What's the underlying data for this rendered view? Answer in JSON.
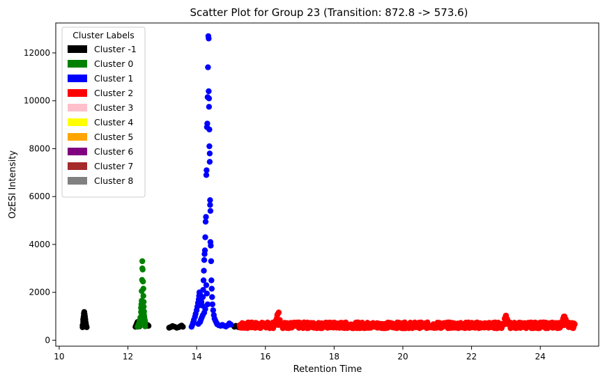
{
  "chart_data": {
    "type": "scatter",
    "title": "Scatter Plot for Group 23 (Transition: 872.8 -> 573.6)",
    "xlabel": "Retention Time",
    "ylabel": "OzESI Intensity",
    "xlim": [
      9.9,
      25.7
    ],
    "ylim": [
      -250,
      13250
    ],
    "xticks": [
      10,
      12,
      14,
      16,
      18,
      20,
      22,
      24
    ],
    "yticks": [
      0,
      2000,
      4000,
      6000,
      8000,
      10000,
      12000
    ],
    "legend": {
      "title": "Cluster Labels",
      "placement": "top-left",
      "entries": [
        {
          "label": "Cluster -1",
          "color": "#000000"
        },
        {
          "label": "Cluster 0",
          "color": "#008000"
        },
        {
          "label": "Cluster 1",
          "color": "#0000ff"
        },
        {
          "label": "Cluster 2",
          "color": "#ff0000"
        },
        {
          "label": "Cluster 3",
          "color": "#ffc0cb"
        },
        {
          "label": "Cluster 4",
          "color": "#ffff00"
        },
        {
          "label": "Cluster 5",
          "color": "#ffa500"
        },
        {
          "label": "Cluster 6",
          "color": "#800080"
        },
        {
          "label": "Cluster 7",
          "color": "#a52a2a"
        },
        {
          "label": "Cluster 8",
          "color": "#808080"
        }
      ]
    },
    "series": [
      {
        "color": "#000000",
        "points": [
          [
            10.68,
            540
          ],
          [
            10.68,
            620
          ],
          [
            10.7,
            700
          ],
          [
            10.7,
            780
          ],
          [
            10.7,
            870
          ],
          [
            10.71,
            960
          ],
          [
            10.72,
            1050
          ],
          [
            10.72,
            1120
          ],
          [
            10.73,
            1180
          ],
          [
            10.74,
            1090
          ],
          [
            10.75,
            990
          ],
          [
            10.76,
            880
          ],
          [
            10.77,
            760
          ],
          [
            10.78,
            660
          ],
          [
            10.79,
            580
          ],
          [
            10.8,
            540
          ],
          [
            12.22,
            560
          ],
          [
            12.24,
            620
          ],
          [
            12.26,
            700
          ],
          [
            12.28,
            760
          ],
          [
            12.3,
            690
          ],
          [
            12.34,
            580
          ],
          [
            12.55,
            600
          ],
          [
            12.58,
            630
          ],
          [
            12.6,
            600
          ],
          [
            13.2,
            520
          ],
          [
            13.25,
            550
          ],
          [
            13.3,
            590
          ],
          [
            13.36,
            560
          ],
          [
            13.42,
            520
          ],
          [
            13.48,
            540
          ],
          [
            13.52,
            580
          ],
          [
            13.56,
            610
          ],
          [
            13.6,
            560
          ],
          [
            15.1,
            560
          ],
          [
            15.14,
            600
          ],
          [
            15.18,
            580
          ],
          [
            15.22,
            540
          ]
        ]
      },
      {
        "color": "#008000",
        "points": [
          [
            12.28,
            560
          ],
          [
            12.3,
            620
          ],
          [
            12.32,
            700
          ],
          [
            12.34,
            820
          ],
          [
            12.36,
            950
          ],
          [
            12.38,
            1180
          ],
          [
            12.38,
            1350
          ],
          [
            12.39,
            1500
          ],
          [
            12.4,
            1650
          ],
          [
            12.4,
            2050
          ],
          [
            12.41,
            2520
          ],
          [
            12.42,
            3000
          ],
          [
            12.42,
            3300
          ],
          [
            12.43,
            2950
          ],
          [
            12.44,
            2450
          ],
          [
            12.45,
            2150
          ],
          [
            12.45,
            1850
          ],
          [
            12.46,
            1600
          ],
          [
            12.46,
            1400
          ],
          [
            12.47,
            1200
          ],
          [
            12.47,
            1050
          ],
          [
            12.48,
            950
          ],
          [
            12.49,
            850
          ],
          [
            12.5,
            780
          ],
          [
            12.5,
            700
          ],
          [
            12.4,
            1050
          ],
          [
            12.36,
            680
          ],
          [
            12.44,
            760
          ],
          [
            12.42,
            880
          ],
          [
            12.34,
            600
          ],
          [
            12.48,
            640
          ],
          [
            12.5,
            580
          ]
        ]
      },
      {
        "color": "#0000ff",
        "points": [
          [
            13.85,
            560
          ],
          [
            13.88,
            650
          ],
          [
            13.9,
            740
          ],
          [
            13.92,
            850
          ],
          [
            13.95,
            980
          ],
          [
            13.97,
            1100
          ],
          [
            14.0,
            1250
          ],
          [
            14.02,
            1400
          ],
          [
            14.04,
            1560
          ],
          [
            14.06,
            1700
          ],
          [
            14.07,
            1850
          ],
          [
            14.08,
            2000
          ],
          [
            14.1,
            1900
          ],
          [
            14.12,
            1750
          ],
          [
            14.14,
            1600
          ],
          [
            14.16,
            1450
          ],
          [
            14.18,
            1800
          ],
          [
            14.19,
            2100
          ],
          [
            14.2,
            2500
          ],
          [
            14.21,
            2900
          ],
          [
            14.22,
            3350
          ],
          [
            14.23,
            3600
          ],
          [
            14.24,
            3750
          ],
          [
            14.25,
            4300
          ],
          [
            14.26,
            4950
          ],
          [
            14.27,
            5150
          ],
          [
            14.28,
            6900
          ],
          [
            14.29,
            7100
          ],
          [
            14.3,
            8900
          ],
          [
            14.31,
            9050
          ],
          [
            14.32,
            10150
          ],
          [
            14.33,
            11400
          ],
          [
            14.34,
            12700
          ],
          [
            14.35,
            12600
          ],
          [
            14.35,
            10400
          ],
          [
            14.36,
            10100
          ],
          [
            14.36,
            9750
          ],
          [
            14.37,
            8800
          ],
          [
            14.37,
            8100
          ],
          [
            14.38,
            7800
          ],
          [
            14.38,
            7450
          ],
          [
            14.39,
            5850
          ],
          [
            14.39,
            5650
          ],
          [
            14.4,
            5400
          ],
          [
            14.4,
            4100
          ],
          [
            14.41,
            3950
          ],
          [
            14.42,
            3300
          ],
          [
            14.43,
            2500
          ],
          [
            14.44,
            2150
          ],
          [
            14.45,
            1800
          ],
          [
            14.46,
            1500
          ],
          [
            14.48,
            1250
          ],
          [
            14.5,
            1050
          ],
          [
            14.52,
            900
          ],
          [
            14.55,
            800
          ],
          [
            14.58,
            720
          ],
          [
            14.6,
            660
          ],
          [
            14.65,
            620
          ],
          [
            14.7,
            600
          ],
          [
            14.75,
            640
          ],
          [
            14.8,
            600
          ],
          [
            14.85,
            570
          ],
          [
            14.9,
            620
          ],
          [
            14.95,
            700
          ],
          [
            15.0,
            650
          ],
          [
            14.28,
            2300
          ],
          [
            14.3,
            1950
          ],
          [
            14.32,
            1500
          ],
          [
            14.25,
            1300
          ],
          [
            14.22,
            1150
          ],
          [
            14.18,
            1050
          ],
          [
            14.15,
            950
          ],
          [
            14.12,
            850
          ],
          [
            14.1,
            760
          ],
          [
            14.05,
            680
          ]
        ]
      },
      {
        "color": "#ff0000",
        "generator": true,
        "xrange": [
          15.25,
          25.0
        ],
        "base": 620,
        "spread": 180,
        "peaks": [
          [
            16.38,
            1320
          ],
          [
            23.0,
            1050
          ],
          [
            24.7,
            1050
          ]
        ]
      }
    ]
  }
}
